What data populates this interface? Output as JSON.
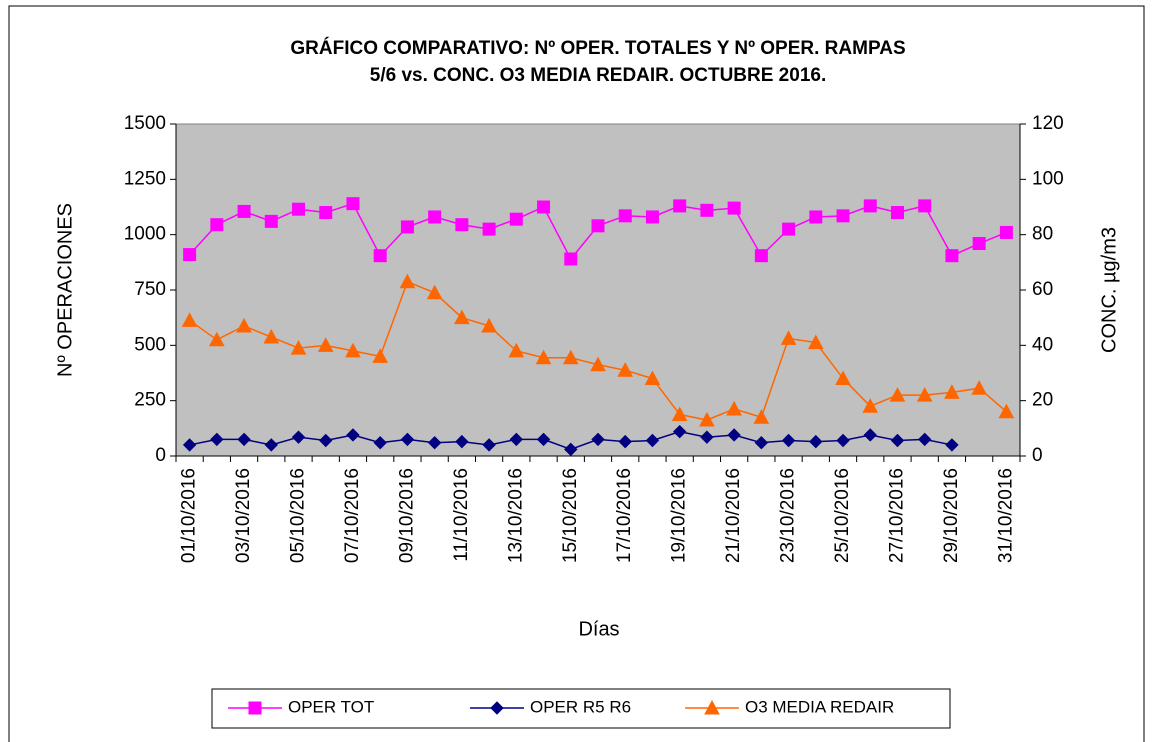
{
  "chart_data": {
    "type": "line",
    "title": [
      "GRÁFICO COMPARATIVO:  Nº OPER. TOTALES Y Nº OPER. RAMPAS",
      "5/6 vs. CONC.  O3 MEDIA REDAIR.  OCTUBRE 2016."
    ],
    "xlabel": "Días",
    "ylabel": "Nº OPERACIONES",
    "y2label": "CONC.  µg/m3",
    "categories": [
      "01/10/2016",
      null,
      "03/10/2016",
      null,
      "05/10/2016",
      null,
      "07/10/2016",
      null,
      "09/10/2016",
      null,
      "11/10/2016",
      null,
      "13/10/2016",
      null,
      "15/10/2016",
      null,
      "17/10/2016",
      null,
      "19/10/2016",
      null,
      "21/10/2016",
      null,
      "23/10/2016",
      null,
      "25/10/2016",
      null,
      "27/10/2016",
      null,
      "29/10/2016",
      null,
      "31/10/2016"
    ],
    "ylim": [
      0,
      1500
    ],
    "yticks": [
      0,
      250,
      500,
      750,
      1000,
      1250,
      1500
    ],
    "y2lim": [
      0,
      120
    ],
    "y2ticks": [
      0,
      20,
      40,
      60,
      80,
      100,
      120
    ],
    "plot_background": "#c0c0c0",
    "legend": "bottom",
    "series": [
      {
        "name": "OPER TOT",
        "color": "#ff00ff",
        "marker": "square",
        "values": [
          910,
          1045,
          1105,
          1060,
          1115,
          1100,
          1140,
          905,
          1035,
          1080,
          1045,
          1025,
          1070,
          1125,
          890,
          1040,
          1085,
          1080,
          1130,
          1110,
          1120,
          905,
          1025,
          1080,
          1085,
          1130,
          1100,
          1130,
          905,
          960,
          1010
        ]
      },
      {
        "name": "OPER R5 R6",
        "color": "#000080",
        "marker": "diamond",
        "values": [
          50,
          75,
          75,
          50,
          85,
          70,
          95,
          60,
          75,
          60,
          65,
          50,
          75,
          75,
          30,
          75,
          65,
          70,
          110,
          85,
          95,
          60,
          70,
          65,
          70,
          95,
          70,
          75,
          50,
          null,
          null
        ]
      },
      {
        "name": "O3 MEDIA REDAIR",
        "color": "#ff6600",
        "marker": "triangle",
        "axis": "y2",
        "values": [
          49,
          42,
          47,
          43,
          39,
          40,
          38,
          36,
          63,
          59,
          50,
          47,
          38,
          35.5,
          35.5,
          33,
          31,
          28,
          15,
          13,
          17,
          14,
          42.5,
          41,
          28,
          18,
          22,
          22,
          23,
          24.5,
          16
        ]
      }
    ]
  }
}
